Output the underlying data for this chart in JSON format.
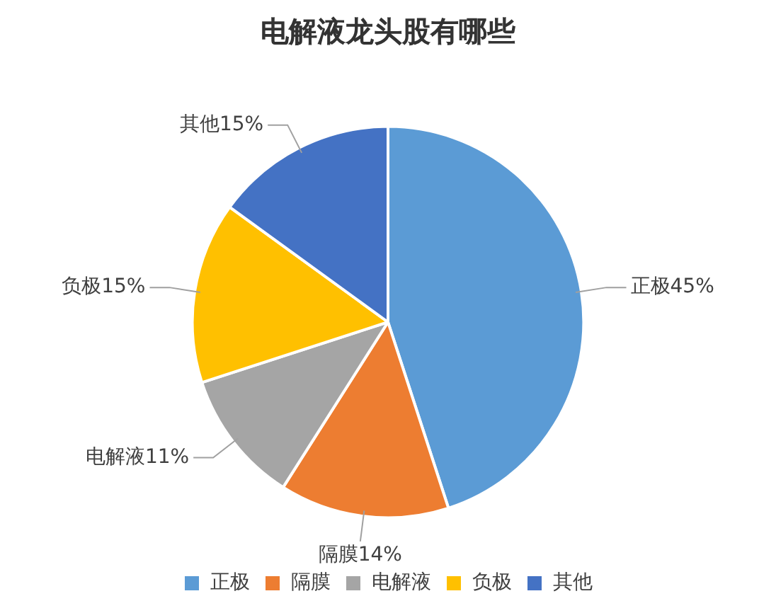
{
  "chart_data": {
    "type": "pie",
    "title": "电解液龙头股有哪些",
    "categories": [
      "正极",
      "隔膜",
      "电解液",
      "负极",
      "其他"
    ],
    "values": [
      45,
      14,
      11,
      15,
      15
    ],
    "colors": [
      "#5b9bd5",
      "#ed7d31",
      "#a5a5a5",
      "#ffc000",
      "#4472c4"
    ],
    "value_labels": [
      "正极45%",
      "隔膜14%",
      "电解液11%",
      "负极15%",
      "其他15%"
    ],
    "legend": "bottom"
  }
}
